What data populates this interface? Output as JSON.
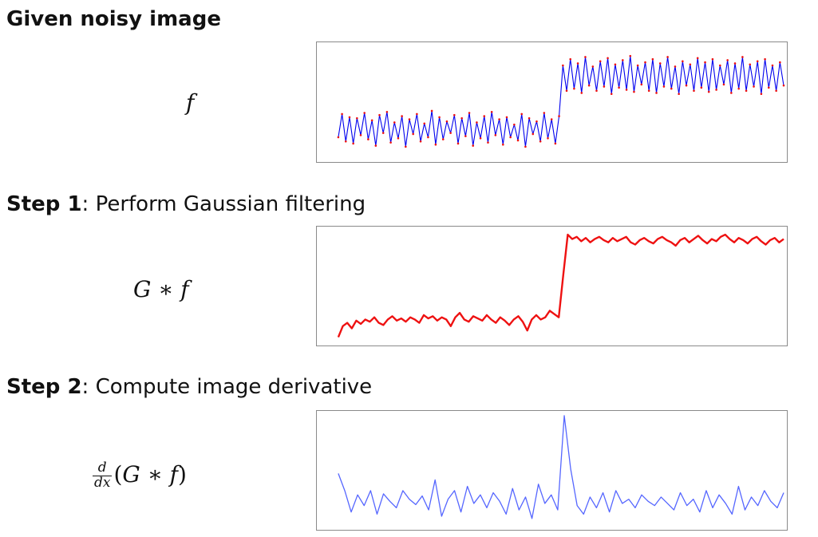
{
  "headings": {
    "given": "Given noisy image",
    "step1_bold": "Step 1",
    "step1_rest": ": Perform Gaussian filtering",
    "step2_bold": "Step 2",
    "step2_rest": ": Compute image derivative"
  },
  "labels": {
    "f": "f",
    "gf_g": "G",
    "gf_op": "∗",
    "gf_f": "f",
    "deriv_num": "d",
    "deriv_den": "dx",
    "deriv_open": "(",
    "deriv_g": "G",
    "deriv_op": "∗",
    "deriv_f": "f",
    "deriv_close": ")"
  },
  "colors": {
    "noisy_line": "#0000ee",
    "noisy_points": "#ee1111",
    "smoothed": "#ee1111",
    "derivative": "#5566ff",
    "panel_border": "#8a8a8a"
  },
  "chart_data": [
    {
      "type": "line",
      "series": [
        {
          "values": [
            0.16,
            0.38,
            0.12,
            0.35,
            0.1,
            0.34,
            0.18,
            0.39,
            0.14,
            0.32,
            0.08,
            0.37,
            0.2,
            0.4,
            0.11,
            0.3,
            0.15,
            0.36,
            0.07,
            0.33,
            0.19,
            0.38,
            0.12,
            0.29,
            0.16,
            0.41,
            0.09,
            0.35,
            0.14,
            0.31,
            0.2,
            0.37,
            0.1,
            0.34,
            0.17,
            0.39,
            0.08,
            0.3,
            0.15,
            0.36,
            0.11,
            0.4,
            0.18,
            0.33,
            0.09,
            0.35,
            0.16,
            0.28,
            0.13,
            0.38,
            0.07,
            0.34,
            0.19,
            0.31,
            0.12,
            0.39,
            0.15,
            0.33,
            0.1,
            0.36,
            0.84,
            0.6,
            0.9,
            0.62,
            0.86,
            0.58,
            0.92,
            0.65,
            0.83,
            0.6,
            0.88,
            0.64,
            0.91,
            0.57,
            0.85,
            0.63,
            0.89,
            0.61,
            0.93,
            0.59,
            0.84,
            0.66,
            0.87,
            0.6,
            0.9,
            0.58,
            0.86,
            0.64,
            0.92,
            0.62,
            0.83,
            0.57,
            0.88,
            0.65,
            0.85,
            0.6,
            0.91,
            0.63,
            0.87,
            0.59,
            0.9,
            0.61,
            0.84,
            0.66,
            0.89,
            0.58,
            0.86,
            0.62,
            0.92,
            0.6,
            0.85,
            0.64,
            0.88,
            0.57,
            0.9,
            0.63,
            0.84,
            0.6,
            0.87,
            0.65
          ]
        }
      ]
    },
    {
      "type": "line",
      "series": [
        {
          "values": [
            0.04,
            0.14,
            0.17,
            0.12,
            0.19,
            0.16,
            0.2,
            0.18,
            0.22,
            0.17,
            0.15,
            0.2,
            0.23,
            0.19,
            0.21,
            0.18,
            0.22,
            0.2,
            0.17,
            0.24,
            0.21,
            0.23,
            0.19,
            0.22,
            0.2,
            0.14,
            0.22,
            0.26,
            0.2,
            0.18,
            0.23,
            0.21,
            0.19,
            0.24,
            0.2,
            0.17,
            0.22,
            0.19,
            0.15,
            0.2,
            0.23,
            0.18,
            0.1,
            0.2,
            0.24,
            0.2,
            0.22,
            0.28,
            0.25,
            0.22,
            0.6,
            0.97,
            0.93,
            0.95,
            0.91,
            0.94,
            0.9,
            0.93,
            0.95,
            0.92,
            0.9,
            0.94,
            0.91,
            0.93,
            0.95,
            0.9,
            0.88,
            0.92,
            0.94,
            0.91,
            0.89,
            0.93,
            0.95,
            0.92,
            0.9,
            0.87,
            0.92,
            0.94,
            0.9,
            0.93,
            0.96,
            0.92,
            0.89,
            0.93,
            0.91,
            0.95,
            0.97,
            0.93,
            0.9,
            0.94,
            0.92,
            0.89,
            0.93,
            0.95,
            0.91,
            0.88,
            0.92,
            0.94,
            0.9,
            0.93
          ]
        }
      ]
    },
    {
      "type": "line",
      "series": [
        {
          "values": [
            0.46,
            0.3,
            0.1,
            0.26,
            0.16,
            0.3,
            0.08,
            0.27,
            0.2,
            0.14,
            0.3,
            0.22,
            0.17,
            0.25,
            0.12,
            0.4,
            0.06,
            0.22,
            0.3,
            0.1,
            0.34,
            0.18,
            0.26,
            0.14,
            0.28,
            0.2,
            0.08,
            0.32,
            0.12,
            0.24,
            0.04,
            0.36,
            0.18,
            0.26,
            0.12,
            1.0,
            0.5,
            0.16,
            0.08,
            0.24,
            0.14,
            0.28,
            0.1,
            0.3,
            0.18,
            0.22,
            0.14,
            0.26,
            0.2,
            0.16,
            0.24,
            0.18,
            0.12,
            0.28,
            0.16,
            0.22,
            0.1,
            0.3,
            0.14,
            0.26,
            0.18,
            0.08,
            0.34,
            0.12,
            0.24,
            0.16,
            0.3,
            0.2,
            0.14,
            0.28
          ]
        }
      ]
    }
  ]
}
